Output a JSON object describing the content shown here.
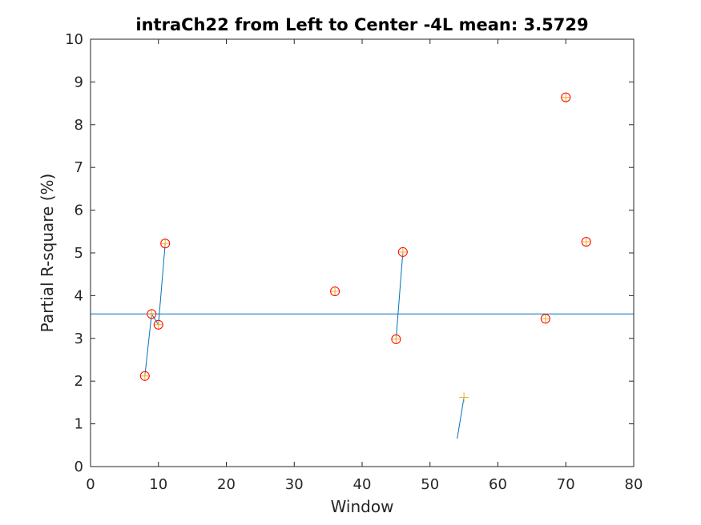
{
  "chart_data": {
    "type": "scatter",
    "title": "intraCh22 from Left to Center -4L mean: 3.5729",
    "xlabel": "Window",
    "ylabel": "Partial R-square (%)",
    "xlim": [
      0,
      80
    ],
    "ylim": [
      0,
      10
    ],
    "xticks": [
      "0",
      "10",
      "20",
      "30",
      "40",
      "50",
      "60",
      "70",
      "80"
    ],
    "yticks": [
      "0",
      "1",
      "2",
      "3",
      "4",
      "5",
      "6",
      "7",
      "8",
      "9",
      "10"
    ],
    "grid": false,
    "mean": 3.5729,
    "points": [
      {
        "x": 8,
        "y": 2.12,
        "circled": true
      },
      {
        "x": 9,
        "y": 3.57,
        "circled": true
      },
      {
        "x": 10,
        "y": 3.32,
        "circled": true
      },
      {
        "x": 11,
        "y": 5.22,
        "circled": true
      },
      {
        "x": 36,
        "y": 4.1,
        "circled": true
      },
      {
        "x": 45,
        "y": 2.98,
        "circled": true
      },
      {
        "x": 46,
        "y": 5.02,
        "circled": true
      },
      {
        "x": 55,
        "y": 1.62,
        "circled": false
      },
      {
        "x": 67,
        "y": 3.46,
        "circled": true
      },
      {
        "x": 70,
        "y": 8.64,
        "circled": true
      },
      {
        "x": 73,
        "y": 5.26,
        "circled": true
      }
    ],
    "segments": [
      [
        [
          8,
          2.12
        ],
        [
          9,
          3.57
        ],
        [
          10,
          3.32
        ],
        [
          11,
          5.22
        ]
      ],
      [
        [
          45,
          2.98
        ],
        [
          46,
          5.02
        ]
      ],
      [
        [
          54,
          0.65
        ],
        [
          55,
          1.62
        ]
      ]
    ],
    "colors": {
      "line": "#0072BD",
      "plus": "#EDB120",
      "circle": "#FF0000",
      "axes": "#262626"
    }
  }
}
